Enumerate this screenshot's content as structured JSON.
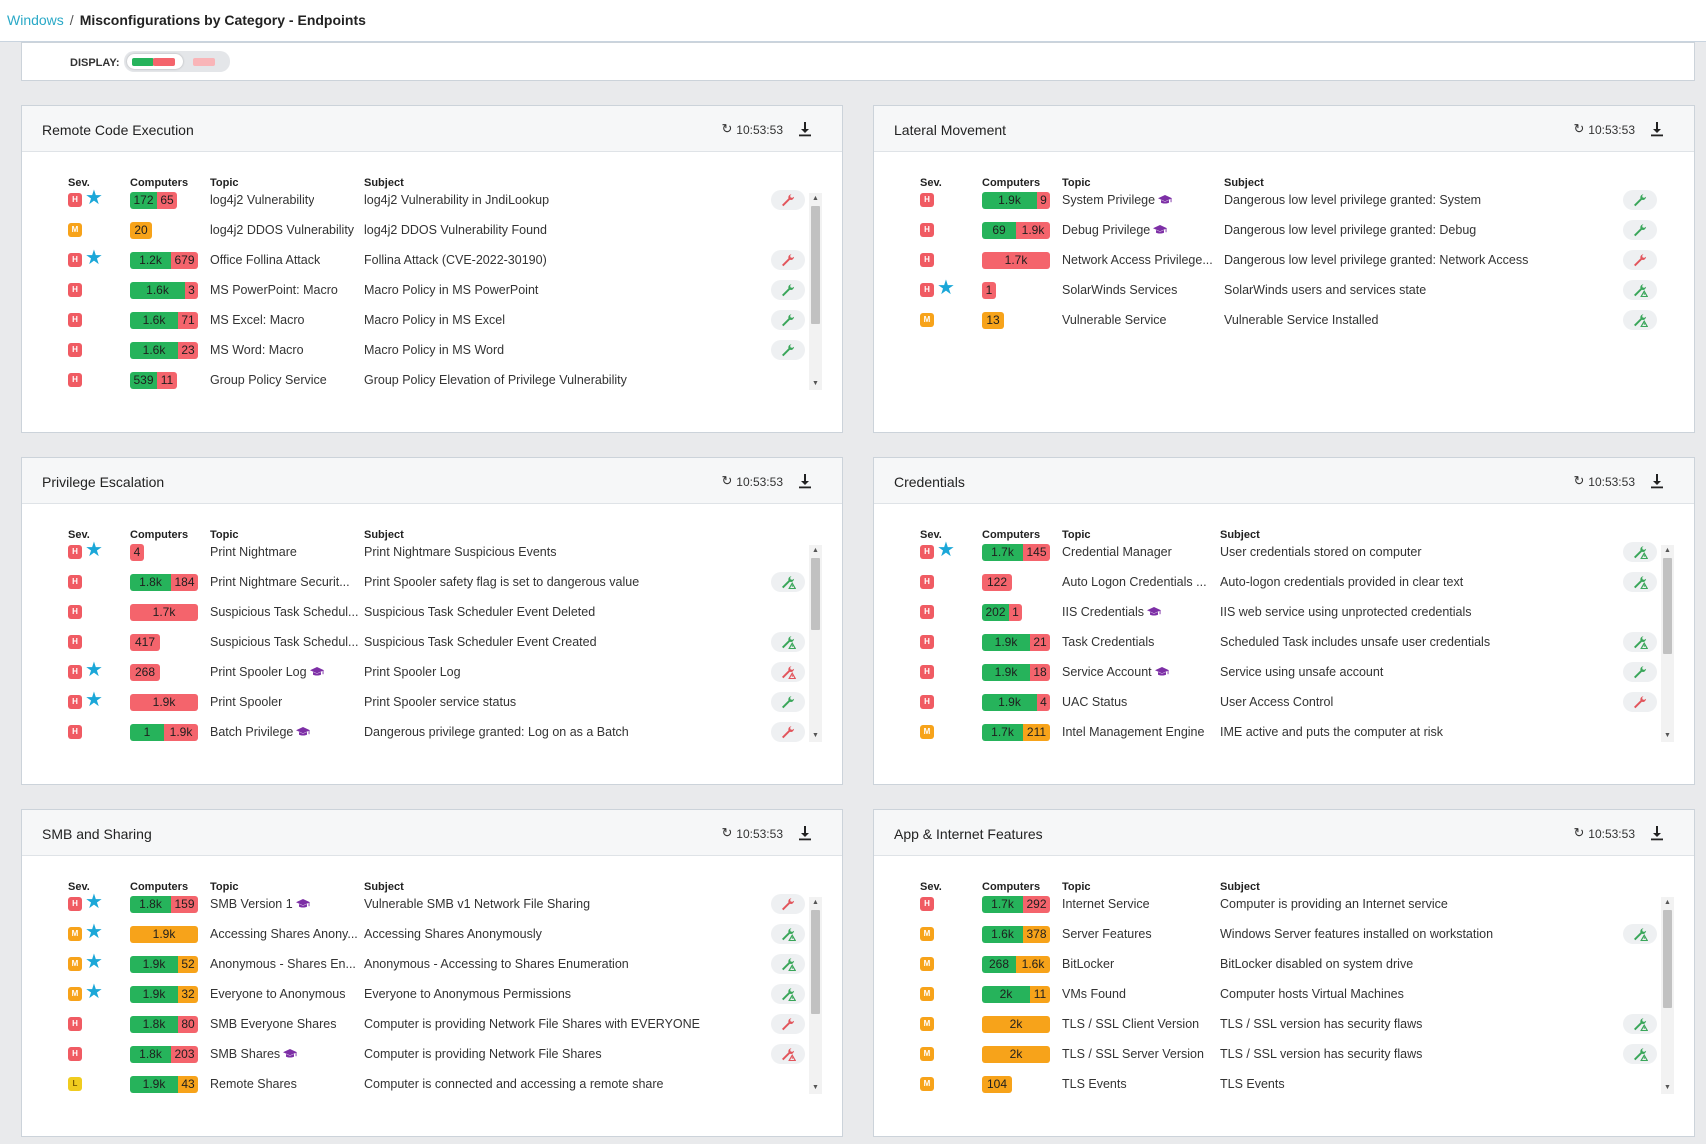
{
  "breadcrumb": {
    "parent": "Windows",
    "separator": "/",
    "current": "Misconfigurations by Category - Endpoints"
  },
  "display": {
    "label": "DISPLAY:"
  },
  "colors": {
    "green": "#26b35b",
    "red": "#f4646c",
    "orange": "#f7a31a",
    "star": "#1ba7d8",
    "wrench_green": "#3aa65a",
    "wrench_red": "#e2555c",
    "grad": "#7d2fa6",
    "link": "#2aa9c7"
  },
  "columns": {
    "sev": "Sev.",
    "computers": "Computers",
    "topic": "Topic",
    "subject": "Subject"
  },
  "panels": [
    {
      "title": "Remote Code Execution",
      "time": "10:53:53",
      "rows": [
        {
          "sev": "H",
          "starred": true,
          "bar": [
            {
              "value": "172",
              "color": "green"
            },
            {
              "value": "65",
              "color": "red"
            }
          ],
          "topic": "log4j2 Vulnerability",
          "grad": false,
          "subject": "log4j2 Vulnerability in JndiLookup",
          "action": "wrench-red"
        },
        {
          "sev": "M",
          "starred": false,
          "bar": [
            {
              "value": "20",
              "color": "orange"
            }
          ],
          "topic": "log4j2 DDOS Vulnerability",
          "grad": false,
          "subject": "log4j2 DDOS Vulnerability Found",
          "action": "none"
        },
        {
          "sev": "H",
          "starred": true,
          "bar": [
            {
              "value": "1.2k",
              "color": "green"
            },
            {
              "value": "679",
              "color": "red"
            }
          ],
          "topic": "Office Follina Attack",
          "grad": false,
          "subject": "Follina Attack (CVE-2022-30190)",
          "action": "wrench-red"
        },
        {
          "sev": "H",
          "starred": false,
          "bar": [
            {
              "value": "1.6k",
              "color": "green"
            },
            {
              "value": "3",
              "color": "red"
            }
          ],
          "topic": "MS PowerPoint: Macro",
          "grad": false,
          "subject": "Macro Policy in MS PowerPoint",
          "action": "wrench-green"
        },
        {
          "sev": "H",
          "starred": false,
          "bar": [
            {
              "value": "1.6k",
              "color": "green"
            },
            {
              "value": "71",
              "color": "red"
            }
          ],
          "topic": "MS Excel: Macro",
          "grad": false,
          "subject": "Macro Policy in MS Excel",
          "action": "wrench-green"
        },
        {
          "sev": "H",
          "starred": false,
          "bar": [
            {
              "value": "1.6k",
              "color": "green"
            },
            {
              "value": "23",
              "color": "red"
            }
          ],
          "topic": "MS Word: Macro",
          "grad": false,
          "subject": "Macro Policy in MS Word",
          "action": "wrench-green"
        },
        {
          "sev": "H",
          "starred": false,
          "bar": [
            {
              "value": "539",
              "color": "green"
            },
            {
              "value": "11",
              "color": "red"
            }
          ],
          "topic": "Group Policy Service",
          "grad": false,
          "subject": "Group Policy Elevation of Privilege Vulnerability",
          "action": "none"
        }
      ]
    },
    {
      "title": "Lateral Movement",
      "time": "10:53:53",
      "rows": [
        {
          "sev": "H",
          "starred": false,
          "bar": [
            {
              "value": "1.9k",
              "color": "green"
            },
            {
              "value": "9",
              "color": "red"
            }
          ],
          "topic": "System Privilege",
          "grad": true,
          "subject": "Dangerous low level privilege granted: System",
          "action": "wrench-green"
        },
        {
          "sev": "H",
          "starred": false,
          "bar": [
            {
              "value": "69",
              "color": "green"
            },
            {
              "value": "1.9k",
              "color": "red"
            }
          ],
          "topic": "Debug Privilege",
          "grad": true,
          "subject": "Dangerous low level privilege granted: Debug",
          "action": "wrench-green"
        },
        {
          "sev": "H",
          "starred": false,
          "bar": [
            {
              "value": "1.7k",
              "color": "red"
            }
          ],
          "topic": "Network Access Privilege...",
          "grad": false,
          "subject": "Dangerous low level privilege granted: Network Access",
          "action": "wrench-red"
        },
        {
          "sev": "H",
          "starred": true,
          "bar": [
            {
              "value": "1",
              "color": "red"
            }
          ],
          "topic": "SolarWinds Services",
          "grad": false,
          "subject": "SolarWinds users and services state",
          "action": "wrench-green-warn"
        },
        {
          "sev": "M",
          "starred": false,
          "bar": [
            {
              "value": "13",
              "color": "orange"
            }
          ],
          "topic": "Vulnerable Service",
          "grad": false,
          "subject": "Vulnerable Service Installed",
          "action": "wrench-green-warn"
        }
      ]
    },
    {
      "title": "Privilege Escalation",
      "time": "10:53:53",
      "rows": [
        {
          "sev": "H",
          "starred": true,
          "bar": [
            {
              "value": "4",
              "color": "red"
            }
          ],
          "topic": "Print Nightmare",
          "grad": false,
          "subject": "Print Nightmare Suspicious Events",
          "action": "none"
        },
        {
          "sev": "H",
          "starred": false,
          "bar": [
            {
              "value": "1.8k",
              "color": "green"
            },
            {
              "value": "184",
              "color": "red"
            }
          ],
          "topic": "Print Nightmare Securit...",
          "grad": false,
          "subject": "Print Spooler safety flag is set to dangerous value",
          "action": "wrench-green-warn"
        },
        {
          "sev": "H",
          "starred": false,
          "bar": [
            {
              "value": "1.7k",
              "color": "red"
            }
          ],
          "topic": "Suspicious Task Schedul...",
          "grad": false,
          "subject": "Suspicious Task Scheduler Event Deleted",
          "action": "none"
        },
        {
          "sev": "H",
          "starred": false,
          "bar": [
            {
              "value": "417",
              "color": "red"
            }
          ],
          "topic": "Suspicious Task Schedul...",
          "grad": false,
          "subject": "Suspicious Task Scheduler Event Created",
          "action": "wrench-green-warn"
        },
        {
          "sev": "H",
          "starred": true,
          "bar": [
            {
              "value": "268",
              "color": "red"
            }
          ],
          "topic": "Print Spooler Log",
          "grad": true,
          "subject": "Print Spooler Log",
          "action": "wrench-red-warn"
        },
        {
          "sev": "H",
          "starred": true,
          "bar": [
            {
              "value": "1.9k",
              "color": "red"
            }
          ],
          "topic": "Print Spooler",
          "grad": false,
          "subject": "Print Spooler service status",
          "action": "wrench-green"
        },
        {
          "sev": "H",
          "starred": false,
          "bar": [
            {
              "value": "1",
              "color": "green"
            },
            {
              "value": "1.9k",
              "color": "red"
            }
          ],
          "topic": "Batch Privilege",
          "grad": true,
          "subject": "Dangerous privilege granted: Log on as a Batch",
          "action": "wrench-red"
        }
      ]
    },
    {
      "title": "Credentials",
      "time": "10:53:53",
      "rows": [
        {
          "sev": "H",
          "starred": true,
          "bar": [
            {
              "value": "1.7k",
              "color": "green"
            },
            {
              "value": "145",
              "color": "red"
            }
          ],
          "topic": "Credential Manager",
          "grad": false,
          "subject": "User credentials stored on computer",
          "action": "wrench-green-warn"
        },
        {
          "sev": "H",
          "starred": false,
          "bar": [
            {
              "value": "122",
              "color": "red"
            }
          ],
          "topic": "Auto Logon Credentials ...",
          "grad": false,
          "subject": "Auto-logon credentials provided in clear text",
          "action": "wrench-green-warn"
        },
        {
          "sev": "H",
          "starred": false,
          "bar": [
            {
              "value": "202",
              "color": "green"
            },
            {
              "value": "1",
              "color": "red"
            }
          ],
          "topic": "IIS Credentials",
          "grad": true,
          "subject": "IIS web service using unprotected credentials",
          "action": "none"
        },
        {
          "sev": "H",
          "starred": false,
          "bar": [
            {
              "value": "1.9k",
              "color": "green"
            },
            {
              "value": "21",
              "color": "red"
            }
          ],
          "topic": "Task Credentials",
          "grad": false,
          "subject": "Scheduled Task includes unsafe user credentials",
          "action": "wrench-green-warn"
        },
        {
          "sev": "H",
          "starred": false,
          "bar": [
            {
              "value": "1.9k",
              "color": "green"
            },
            {
              "value": "18",
              "color": "red"
            }
          ],
          "topic": "Service Account",
          "grad": true,
          "subject": "Service using unsafe account",
          "action": "wrench-green"
        },
        {
          "sev": "H",
          "starred": false,
          "bar": [
            {
              "value": "1.9k",
              "color": "green"
            },
            {
              "value": "4",
              "color": "red"
            }
          ],
          "topic": "UAC Status",
          "grad": false,
          "subject": "User Access Control",
          "action": "wrench-red"
        },
        {
          "sev": "M",
          "starred": false,
          "bar": [
            {
              "value": "1.7k",
              "color": "green"
            },
            {
              "value": "211",
              "color": "orange"
            }
          ],
          "topic": "Intel Management Engine",
          "grad": false,
          "subject": "IME active and puts the computer at risk",
          "action": "none"
        }
      ]
    },
    {
      "title": "SMB and Sharing",
      "time": "10:53:53",
      "rows": [
        {
          "sev": "H",
          "starred": true,
          "bar": [
            {
              "value": "1.8k",
              "color": "green"
            },
            {
              "value": "159",
              "color": "red"
            }
          ],
          "topic": "SMB Version 1",
          "grad": true,
          "subject": "Vulnerable SMB v1 Network File Sharing",
          "action": "wrench-red"
        },
        {
          "sev": "M",
          "starred": true,
          "bar": [
            {
              "value": "1.9k",
              "color": "orange"
            }
          ],
          "topic": "Accessing Shares Anony...",
          "grad": false,
          "subject": "Accessing Shares Anonymously",
          "action": "wrench-green-warn"
        },
        {
          "sev": "M",
          "starred": true,
          "bar": [
            {
              "value": "1.9k",
              "color": "green"
            },
            {
              "value": "52",
              "color": "orange"
            }
          ],
          "topic": "Anonymous - Shares En...",
          "grad": false,
          "subject": "Anonymous - Accessing to Shares Enumeration",
          "action": "wrench-green-warn"
        },
        {
          "sev": "M",
          "starred": true,
          "bar": [
            {
              "value": "1.9k",
              "color": "green"
            },
            {
              "value": "32",
              "color": "orange"
            }
          ],
          "topic": "Everyone to Anonymous",
          "grad": false,
          "subject": "Everyone to Anonymous Permissions",
          "action": "wrench-green-warn"
        },
        {
          "sev": "H",
          "starred": false,
          "bar": [
            {
              "value": "1.8k",
              "color": "green"
            },
            {
              "value": "80",
              "color": "red"
            }
          ],
          "topic": "SMB Everyone Shares",
          "grad": false,
          "subject": "Computer is providing Network File Shares with EVERYONE",
          "action": "wrench-red"
        },
        {
          "sev": "H",
          "starred": false,
          "bar": [
            {
              "value": "1.8k",
              "color": "green"
            },
            {
              "value": "203",
              "color": "red"
            }
          ],
          "topic": "SMB Shares",
          "grad": true,
          "subject": "Computer is providing Network File Shares",
          "action": "wrench-red-warn"
        },
        {
          "sev": "L",
          "starred": false,
          "bar": [
            {
              "value": "1.9k",
              "color": "green"
            },
            {
              "value": "43",
              "color": "orange"
            }
          ],
          "topic": "Remote Shares",
          "grad": false,
          "subject": "Computer is connected and accessing a remote share",
          "action": "none"
        }
      ]
    },
    {
      "title": "App & Internet Features",
      "time": "10:53:53",
      "rows": [
        {
          "sev": "H",
          "starred": false,
          "bar": [
            {
              "value": "1.7k",
              "color": "green"
            },
            {
              "value": "292",
              "color": "red"
            }
          ],
          "topic": "Internet Service",
          "grad": false,
          "subject": "Computer is providing an Internet service",
          "action": "none"
        },
        {
          "sev": "M",
          "starred": false,
          "bar": [
            {
              "value": "1.6k",
              "color": "green"
            },
            {
              "value": "378",
              "color": "orange"
            }
          ],
          "topic": "Server Features",
          "grad": false,
          "subject": "Windows Server features installed on workstation",
          "action": "wrench-green-warn"
        },
        {
          "sev": "M",
          "starred": false,
          "bar": [
            {
              "value": "268",
              "color": "green"
            },
            {
              "value": "1.6k",
              "color": "orange"
            }
          ],
          "topic": "BitLocker",
          "grad": false,
          "subject": "BitLocker disabled on system drive",
          "action": "none"
        },
        {
          "sev": "M",
          "starred": false,
          "bar": [
            {
              "value": "2k",
              "color": "green"
            },
            {
              "value": "11",
              "color": "orange"
            }
          ],
          "topic": "VMs Found",
          "grad": false,
          "subject": "Computer hosts Virtual Machines",
          "action": "none"
        },
        {
          "sev": "M",
          "starred": false,
          "bar": [
            {
              "value": "2k",
              "color": "orange"
            }
          ],
          "topic": "TLS / SSL Client Version",
          "grad": false,
          "subject": "TLS / SSL version has security flaws",
          "action": "wrench-green-warn"
        },
        {
          "sev": "M",
          "starred": false,
          "bar": [
            {
              "value": "2k",
              "color": "orange"
            }
          ],
          "topic": "TLS / SSL Server Version",
          "grad": false,
          "subject": "TLS / SSL version has security flaws",
          "action": "wrench-green-warn"
        },
        {
          "sev": "M",
          "starred": false,
          "bar": [
            {
              "value": "104",
              "color": "orange"
            }
          ],
          "topic": "TLS Events",
          "grad": false,
          "subject": "TLS Events",
          "action": "none"
        }
      ]
    }
  ]
}
